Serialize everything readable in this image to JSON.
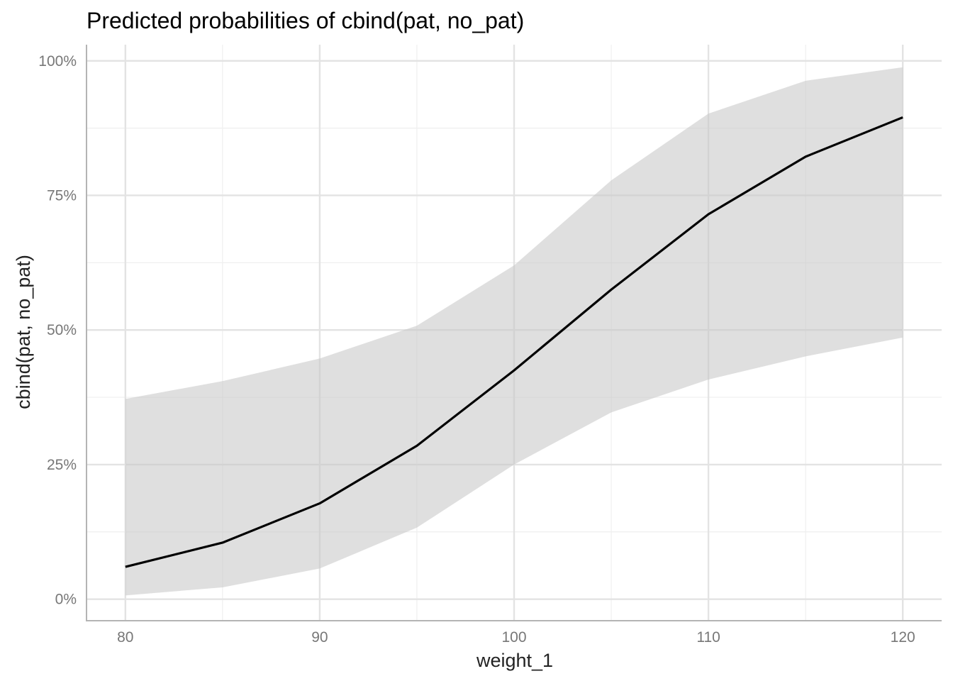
{
  "chart_data": {
    "type": "line",
    "title": "Predicted probabilities of cbind(pat, no_pat)",
    "xlabel": "weight_1",
    "ylabel": "cbind(pat, no_pat)",
    "xlim": [
      78,
      122
    ],
    "ylim": [
      -0.04,
      1.03
    ],
    "x_ticks": [
      80,
      90,
      100,
      110,
      120
    ],
    "x_tick_labels": [
      "80",
      "90",
      "100",
      "110",
      "120"
    ],
    "y_ticks": [
      0,
      0.25,
      0.5,
      0.75,
      1.0
    ],
    "y_tick_labels": [
      "0%",
      "25%",
      "50%",
      "75%",
      "100%"
    ],
    "x_minor_ticks": [
      85,
      95,
      105,
      115
    ],
    "y_minor_ticks": [
      0.125,
      0.375,
      0.625,
      0.875
    ],
    "grid": true,
    "legend": "none",
    "colors": {
      "line": "#000000",
      "ribbon": "#c8c8c8",
      "grid_major": "#e3e3e3",
      "grid_minor": "#efefef",
      "axis": "#b4b4b4"
    },
    "series": [
      {
        "x": [
          80,
          85,
          90,
          95,
          100,
          105,
          110,
          115,
          120
        ],
        "values": [
          0.06,
          0.105,
          0.178,
          0.285,
          0.425,
          0.575,
          0.715,
          0.822,
          0.895
        ],
        "ci_low": [
          0.007,
          0.022,
          0.057,
          0.133,
          0.25,
          0.347,
          0.408,
          0.451,
          0.486
        ],
        "ci_high": [
          0.372,
          0.405,
          0.447,
          0.508,
          0.62,
          0.778,
          0.902,
          0.963,
          0.988
        ]
      }
    ]
  }
}
